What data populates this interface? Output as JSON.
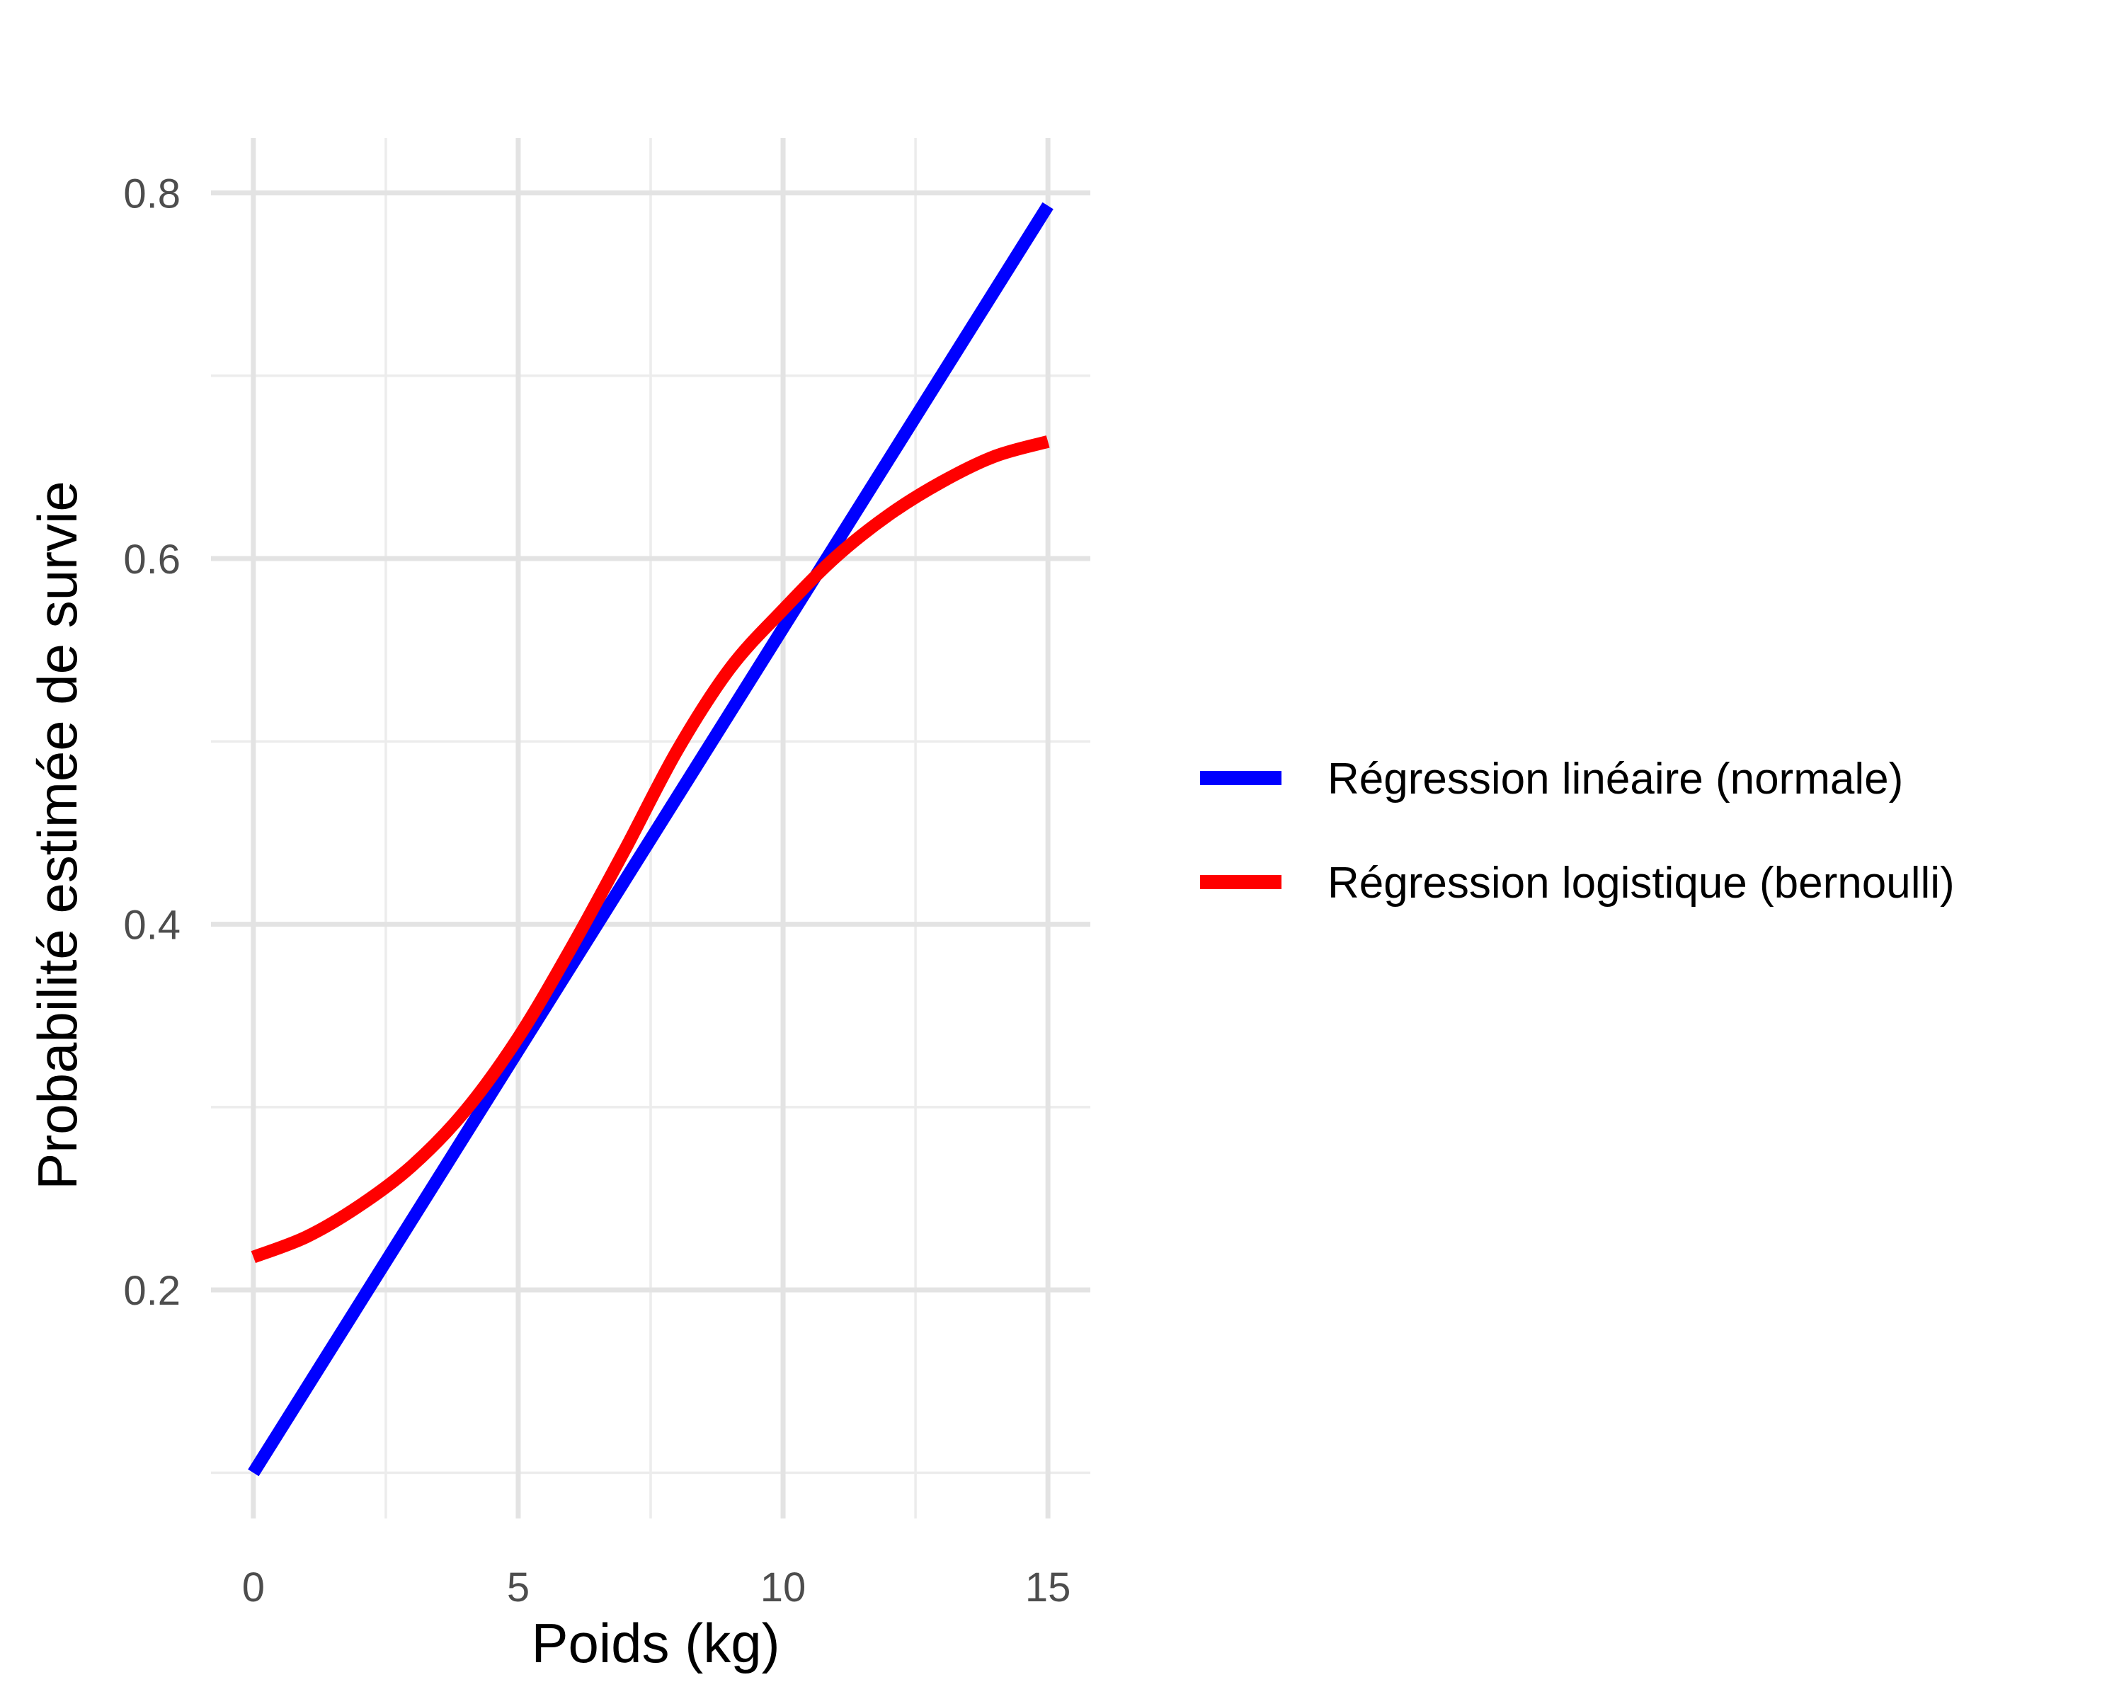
{
  "chart_data": {
    "type": "line",
    "title": "",
    "xlabel": "Poids (kg)",
    "ylabel": "Probabilité estimée de survie",
    "xlim": [
      -0.8,
      15.8
    ],
    "ylim": [
      0.075,
      0.83
    ],
    "x_ticks": [
      0,
      5,
      10,
      15
    ],
    "x_tick_labels": [
      "0",
      "5",
      "10",
      "15"
    ],
    "y_ticks": [
      0.2,
      0.4,
      0.6,
      0.8
    ],
    "y_tick_labels": [
      "0.2",
      "0.4",
      "0.6",
      "0.8"
    ],
    "x_minor_ticks": [
      2.5,
      7.5,
      12.5
    ],
    "y_minor_ticks": [
      0.1,
      0.3,
      0.5,
      0.7
    ],
    "grid": true,
    "legend_position": "right",
    "series": [
      {
        "name": "Régression linéaire (normale)",
        "color": "#0000ff",
        "x": [
          0,
          15
        ],
        "y": [
          0.1,
          0.793
        ]
      },
      {
        "name": "Régression logistique (bernoulli)",
        "color": "#ff0000",
        "x": [
          0,
          1,
          2,
          3,
          4,
          5,
          6,
          7,
          8,
          9,
          10,
          11,
          12,
          13,
          14,
          15
        ],
        "y": [
          0.218,
          0.229,
          0.246,
          0.268,
          0.298,
          0.338,
          0.387,
          0.44,
          0.495,
          0.54,
          0.572,
          0.601,
          0.624,
          0.642,
          0.656,
          0.664
        ]
      }
    ]
  }
}
